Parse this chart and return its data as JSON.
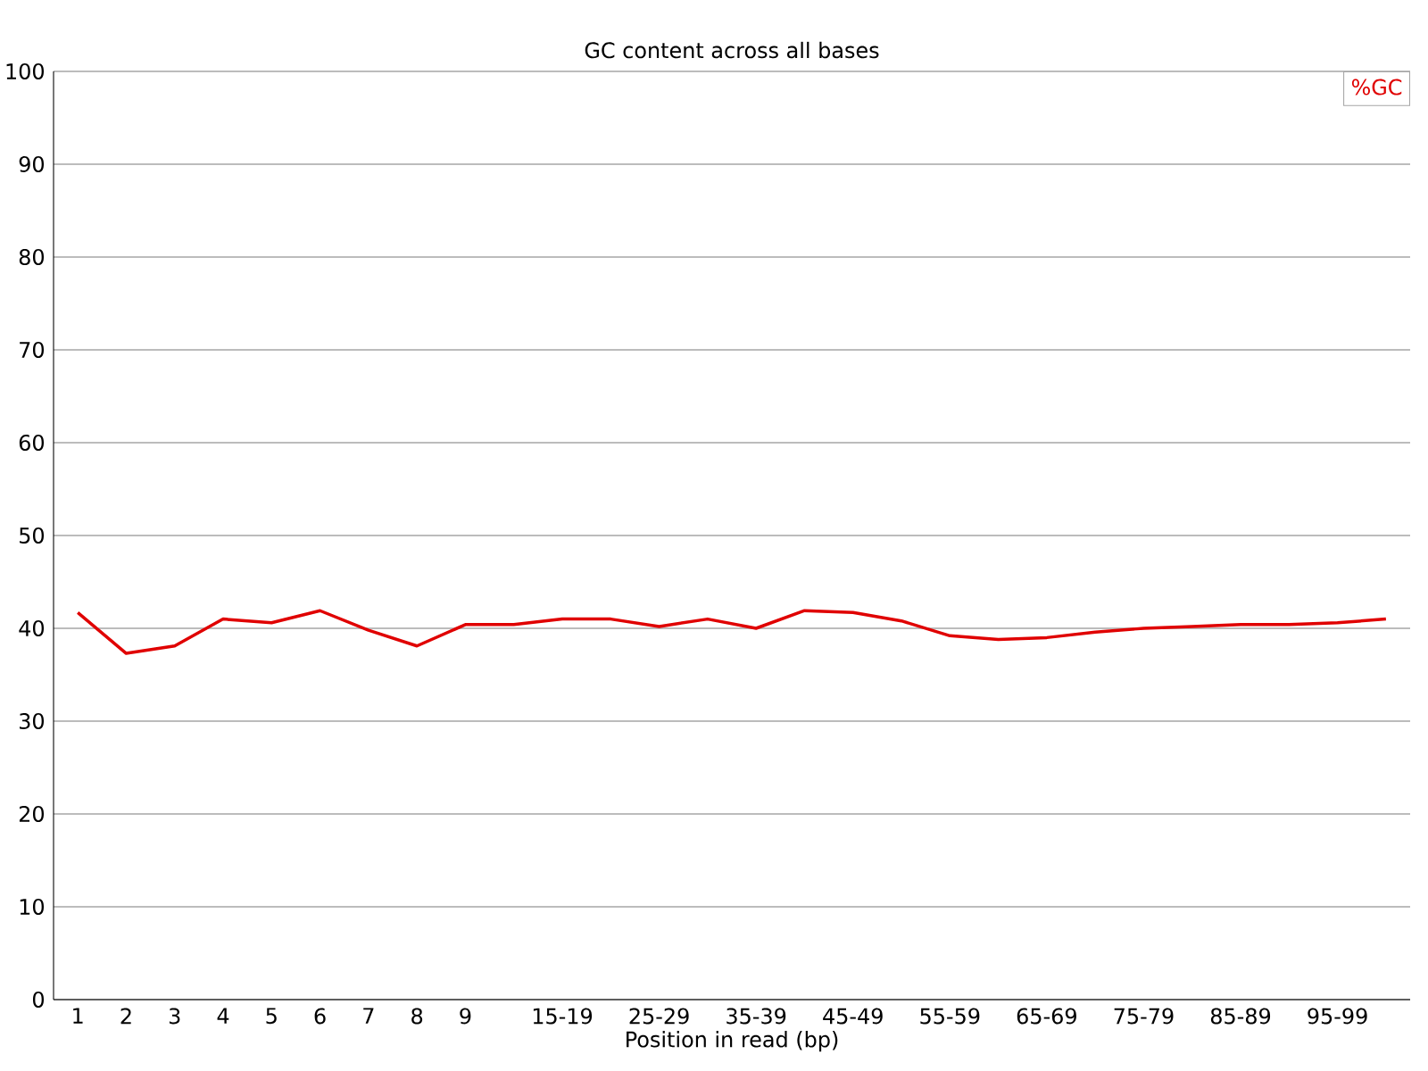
{
  "chart_data": {
    "type": "line",
    "title": "GC content across all bases",
    "xlabel": "Position in read (bp)",
    "categories": [
      "1",
      "2",
      "3",
      "4",
      "5",
      "6",
      "7",
      "8",
      "9",
      null,
      "15-19",
      null,
      "25-29",
      null,
      "35-39",
      null,
      "45-49",
      null,
      "55-59",
      null,
      "65-69",
      null,
      "75-79",
      null,
      "85-89",
      null,
      "95-99",
      null
    ],
    "series": [
      {
        "name": "%GC",
        "color": "#e00000",
        "values": [
          41.7,
          37.3,
          38.1,
          41.0,
          40.6,
          41.9,
          39.8,
          38.1,
          40.4,
          40.4,
          41.0,
          41.0,
          40.2,
          41.0,
          40.0,
          41.9,
          41.7,
          40.8,
          39.2,
          38.8,
          39.0,
          39.6,
          40.0,
          40.2,
          40.4,
          40.4,
          40.6,
          41.0
        ]
      }
    ],
    "ylim": [
      0,
      100
    ],
    "yticks": [
      0,
      10,
      20,
      30,
      40,
      50,
      60,
      70,
      80,
      90,
      100
    ],
    "grid": "y",
    "legend": "top right",
    "marker": "none",
    "line_style": "solid"
  }
}
